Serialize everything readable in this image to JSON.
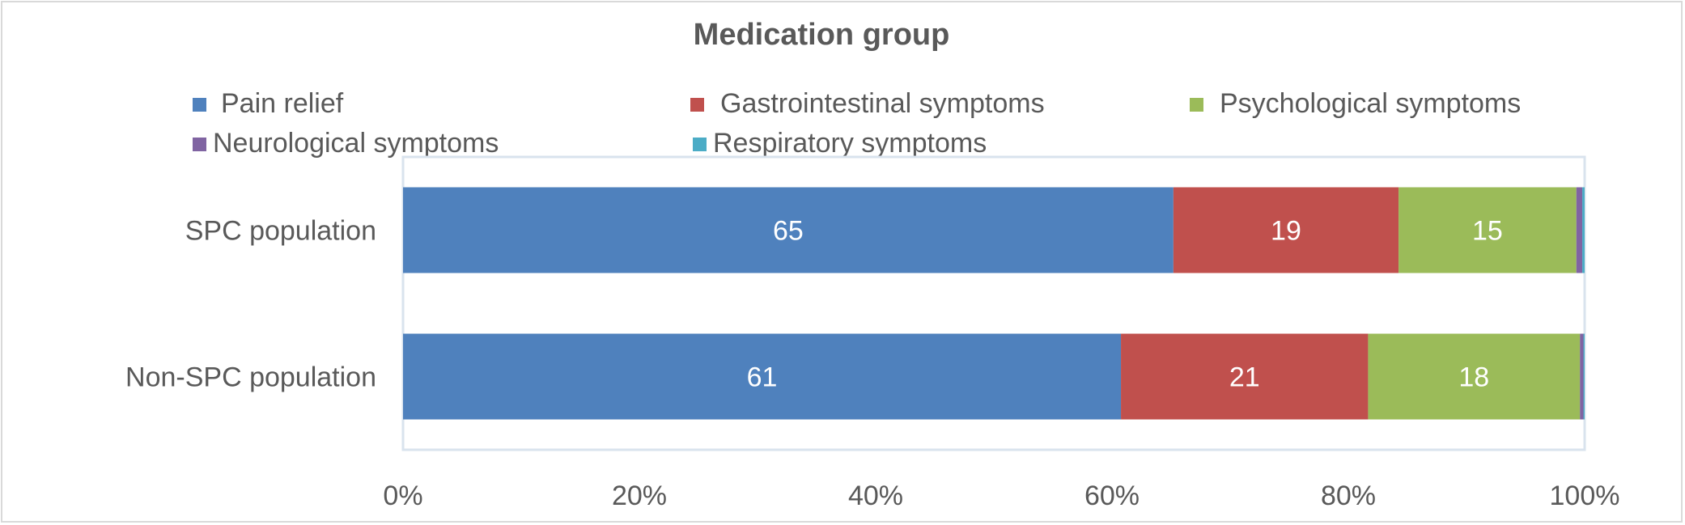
{
  "chart_data": {
    "type": "bar",
    "orientation": "horizontal",
    "stacked": "100%",
    "title": "Medication group",
    "categories": [
      "SPC population",
      "Non-SPC population"
    ],
    "series": [
      {
        "name": "Pain relief",
        "color": "#4f81bd",
        "values": [
          65,
          61
        ],
        "labels": [
          "65",
          "61"
        ]
      },
      {
        "name": "Gastrointestinal symptoms",
        "color": "#c0504d",
        "values": [
          19,
          21
        ],
        "labels": [
          "19",
          "21"
        ]
      },
      {
        "name": "Psychological symptoms",
        "color": "#9bbb59",
        "values": [
          15,
          18
        ],
        "labels": [
          "15",
          "18"
        ]
      },
      {
        "name": "Neurological symptoms",
        "color": "#8064a2",
        "values": [
          0.5,
          0.3
        ],
        "labels": [
          "",
          ""
        ]
      },
      {
        "name": "Respiratory symptoms",
        "color": "#4bacc6",
        "values": [
          0.2,
          0.1
        ],
        "labels": [
          "",
          ""
        ]
      }
    ],
    "xlim": [
      0,
      100
    ],
    "xticks": [
      "0%",
      "20%",
      "40%",
      "60%",
      "80%",
      "100%"
    ],
    "legend_position": "top",
    "grid": false
  }
}
